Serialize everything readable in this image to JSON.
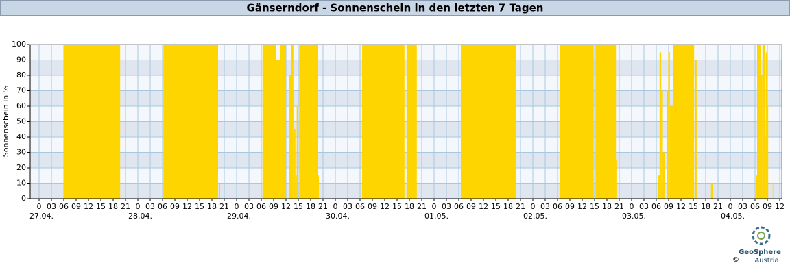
{
  "chart_data": {
    "type": "step-area",
    "title": "Gänserndorf - Sonnenschein in den letzten 7 Tagen",
    "ylabel": "Sonnenschein in %",
    "color": "#ffd500",
    "grid": true,
    "x": [
      0,
      6.0,
      19.7,
      30.2,
      43.5,
      43.8,
      44.0,
      54.3,
      57.5,
      58.5,
      60.0,
      60.8,
      61.3,
      61.8,
      62.0,
      62.3,
      62.6,
      62.9,
      63.2,
      67.8,
      68.0,
      78.5,
      88.8,
      89.3,
      91.8,
      102.5,
      116.0,
      126.5,
      134.8,
      135.2,
      140.2,
      140.4,
      150.5,
      150.8,
      151.2,
      151.6,
      152.0,
      152.5,
      152.9,
      153.3,
      154.0,
      159.2,
      159.5,
      159.8,
      160.0,
      163.3,
      163.7,
      164.2,
      164.3,
      174.2,
      174.5,
      175.5,
      175.8,
      176.4,
      176.6,
      176.9,
      177.2,
      178.3,
      178.4
    ],
    "values": [
      0,
      100,
      0,
      100,
      0,
      10,
      0,
      100,
      90,
      100,
      0,
      80,
      100,
      70,
      45,
      15,
      60,
      0,
      100,
      15,
      0,
      100,
      0,
      100,
      0,
      100,
      0,
      100,
      0,
      100,
      25,
      0,
      15,
      95,
      70,
      30,
      0,
      70,
      95,
      60,
      100,
      0,
      90,
      60,
      0,
      10,
      0,
      72,
      0,
      15,
      100,
      80,
      100,
      40,
      95,
      60,
      0,
      10,
      0
    ],
    "xlim": [
      -2.17,
      180.5
    ],
    "ylim": [
      0,
      100
    ],
    "yticks": [
      0,
      10,
      20,
      30,
      40,
      50,
      60,
      70,
      80,
      90,
      100
    ],
    "xticks": [
      0,
      {
        "value": 3,
        "label": "03"
      },
      {
        "value": 6,
        "label": "06"
      },
      {
        "value": 9,
        "label": "09"
      },
      12,
      15,
      18,
      21,
      {
        "value": 24,
        "label": "0"
      },
      {
        "value": 27,
        "label": "03"
      },
      {
        "value": 30,
        "label": "06"
      },
      {
        "value": 33,
        "label": "09"
      },
      {
        "value": 36,
        "label": "12"
      },
      {
        "value": 39,
        "label": "15"
      },
      {
        "value": 42,
        "label": "18"
      },
      {
        "value": 45,
        "label": "21"
      },
      {
        "value": 48,
        "label": "0"
      },
      {
        "value": 51,
        "label": "03"
      },
      {
        "value": 54,
        "label": "06"
      },
      {
        "value": 57,
        "label": "09"
      },
      {
        "value": 60,
        "label": "12"
      },
      {
        "value": 63,
        "label": "15"
      },
      {
        "value": 66,
        "label": "18"
      },
      {
        "value": 69,
        "label": "21"
      },
      {
        "value": 72,
        "label": "0"
      },
      {
        "value": 75,
        "label": "03"
      },
      {
        "value": 78,
        "label": "06"
      },
      {
        "value": 81,
        "label": "09"
      },
      {
        "value": 84,
        "label": "12"
      },
      {
        "value": 87,
        "label": "15"
      },
      {
        "value": 90,
        "label": "18"
      },
      {
        "value": 93,
        "label": "21"
      },
      {
        "value": 96,
        "label": "0"
      },
      {
        "value": 99,
        "label": "03"
      },
      {
        "value": 102,
        "label": "06"
      },
      {
        "value": 105,
        "label": "09"
      },
      {
        "value": 108,
        "label": "12"
      },
      {
        "value": 111,
        "label": "15"
      },
      {
        "value": 114,
        "label": "18"
      },
      {
        "value": 117,
        "label": "21"
      },
      {
        "value": 120,
        "label": "0"
      },
      {
        "value": 123,
        "label": "03"
      },
      {
        "value": 126,
        "label": "06"
      },
      {
        "value": 129,
        "label": "09"
      },
      {
        "value": 132,
        "label": "12"
      },
      {
        "value": 135,
        "label": "15"
      },
      {
        "value": 138,
        "label": "18"
      },
      {
        "value": 141,
        "label": "21"
      },
      {
        "value": 144,
        "label": "0"
      },
      {
        "value": 147,
        "label": "03"
      },
      {
        "value": 150,
        "label": "06"
      },
      {
        "value": 153,
        "label": "09"
      },
      {
        "value": 156,
        "label": "12"
      },
      {
        "value": 159,
        "label": "15"
      },
      {
        "value": 162,
        "label": "18"
      },
      {
        "value": 165,
        "label": "21"
      },
      {
        "value": 168,
        "label": "0"
      },
      {
        "value": 171,
        "label": "03"
      },
      {
        "value": 174,
        "label": "06"
      },
      {
        "value": 177,
        "label": "09"
      },
      {
        "value": 180,
        "label": "12"
      }
    ],
    "date_ticks": [
      {
        "value": 0,
        "label": "27.04."
      },
      {
        "value": 24,
        "label": "28.04."
      },
      {
        "value": 48,
        "label": "29.04."
      },
      {
        "value": 72,
        "label": "30.04."
      },
      {
        "value": 96,
        "label": "01.05."
      },
      {
        "value": 120,
        "label": "02.05."
      },
      {
        "value": 144,
        "label": "03.05."
      },
      {
        "value": 168,
        "label": "04.05."
      }
    ]
  },
  "logo": {
    "name": "GeoSphere",
    "sub": "Austria",
    "copyright": "©"
  }
}
